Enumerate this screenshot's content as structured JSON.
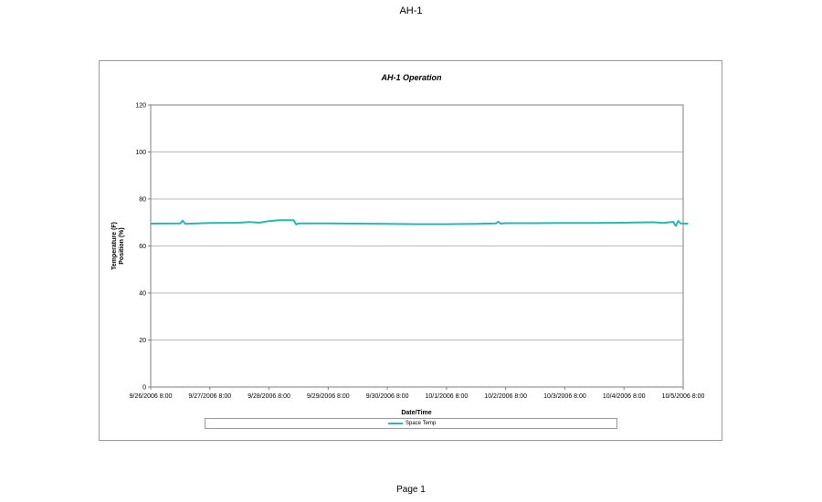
{
  "page": {
    "header": "AH-1",
    "footer": "Page 1"
  },
  "colors": {
    "series": "#2ab5b0",
    "grid": "#b8b8b8",
    "axis": "#7f7f7f"
  },
  "chart_data": {
    "type": "line",
    "title": "AH-1 Operation",
    "xlabel": "Date/Time",
    "ylabel_lines": [
      "Temperature (F)",
      "Position (%)"
    ],
    "ylim": [
      0,
      120
    ],
    "yticks": [
      0,
      20,
      40,
      60,
      80,
      100,
      120
    ],
    "xlim": [
      "9/26/2006 8:00",
      "10/5/2006 8:00"
    ],
    "xtick_labels": [
      "9/26/2006 8:00",
      "9/27/2006 8:00",
      "9/28/2006 8:00",
      "9/29/2006 8:00",
      "9/30/2006 8:00",
      "10/1/2006 8:00",
      "10/2/2006 8:00",
      "10/3/2006 8:00",
      "10/4/2006 8:00",
      "10/5/2006 8:00"
    ],
    "grid": true,
    "legend_position": "bottom",
    "series": [
      {
        "name": "Space Temp",
        "x": [
          "9/26/2006 8:00",
          "9/26/2006 20:00",
          "9/26/2006 21:00",
          "9/26/2006 22:00",
          "9/27/2006 8:00",
          "9/27/2006 20:00",
          "9/28/2006 0:00",
          "9/28/2006 4:00",
          "9/28/2006 8:00",
          "9/28/2006 12:00",
          "9/28/2006 18:00",
          "9/28/2006 19:00",
          "9/28/2006 20:00",
          "9/29/2006 8:00",
          "9/29/2006 20:00",
          "9/30/2006 8:00",
          "9/30/2006 20:00",
          "10/1/2006 8:00",
          "10/1/2006 20:00",
          "10/2/2006 4:00",
          "10/2/2006 5:00",
          "10/2/2006 6:00",
          "10/2/2006 8:00",
          "10/2/2006 20:00",
          "10/3/2006 8:00",
          "10/3/2006 20:00",
          "10/4/2006 8:00",
          "10/4/2006 20:00",
          "10/5/2006 0:00",
          "10/5/2006 4:00",
          "10/5/2006 5:00",
          "10/5/2006 6:00",
          "10/5/2006 7:00",
          "10/5/2006 8:00",
          "10/5/2006 10:00"
        ],
        "y": [
          69.5,
          69.6,
          70.8,
          69.4,
          69.8,
          69.9,
          70.2,
          69.9,
          70.6,
          71.0,
          71.0,
          69.2,
          69.6,
          69.6,
          69.5,
          69.4,
          69.3,
          69.3,
          69.4,
          69.6,
          70.3,
          69.5,
          69.7,
          69.7,
          69.8,
          69.8,
          69.9,
          70.1,
          69.8,
          70.3,
          68.5,
          70.6,
          69.6,
          69.5,
          69.5
        ]
      }
    ]
  }
}
